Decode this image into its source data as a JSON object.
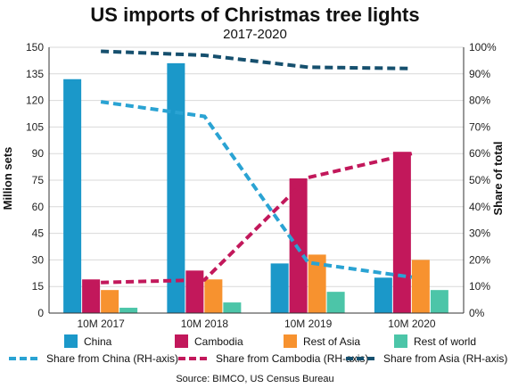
{
  "chart_data": {
    "type": "bar",
    "title": "US imports of Christmas tree lights",
    "subtitle": "2017-2020",
    "categories": [
      "10M 2017",
      "10M 2018",
      "10M 2019",
      "10M 2020"
    ],
    "ylabel": "Million sets",
    "ylabel_right": "Share of total",
    "ylim": [
      0,
      150
    ],
    "ylim_right": [
      0,
      100
    ],
    "yticks": [
      "0",
      "15",
      "30",
      "45",
      "60",
      "75",
      "90",
      "105",
      "120",
      "135",
      "150"
    ],
    "yticks_right": [
      "0%",
      "10%",
      "20%",
      "30%",
      "40%",
      "50%",
      "60%",
      "70%",
      "80%",
      "90%",
      "100%"
    ],
    "grid": true,
    "bar_series": [
      {
        "name": "China",
        "color": "#1b98c9",
        "values": [
          132,
          141,
          28,
          20
        ]
      },
      {
        "name": "Cambodia",
        "color": "#c2185b",
        "values": [
          19,
          24,
          76,
          91
        ]
      },
      {
        "name": "Rest of Asia",
        "color": "#f7922f",
        "values": [
          13,
          19,
          33,
          30
        ]
      },
      {
        "name": "Rest of world",
        "color": "#4cc5a8",
        "values": [
          3,
          6,
          12,
          13
        ]
      }
    ],
    "line_series": [
      {
        "name": "Share from China (RH-axis)",
        "color": "#2aa3d3",
        "values": [
          79.5,
          74,
          19,
          13.5
        ]
      },
      {
        "name": "Share from Cambodia (RH-axis)",
        "color": "#c2185b",
        "values": [
          11.5,
          12.5,
          51,
          60
        ]
      },
      {
        "name": "Share from Asia (RH-axis)",
        "color": "#16506e",
        "values": [
          98.5,
          97,
          92.5,
          92
        ]
      }
    ],
    "legend_position": "bottom",
    "source": "Source: BIMCO, US Census Bureau"
  }
}
